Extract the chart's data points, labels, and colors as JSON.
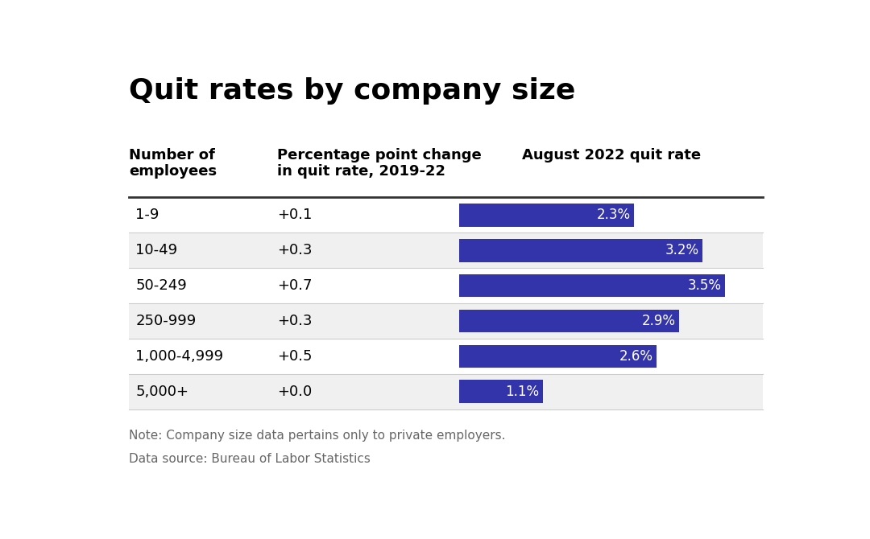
{
  "title": "Quit rates by company size",
  "col1_header": "Number of\nemployees",
  "col2_header": "Percentage point change\nin quit rate, 2019-22",
  "col3_header": "August 2022 quit rate",
  "categories": [
    "1-9",
    "10-49",
    "50-249",
    "250-999",
    "1,000-4,999",
    "5,000+"
  ],
  "pct_changes": [
    "+0.1",
    "+0.3",
    "+0.7",
    "+0.3",
    "+0.5",
    "+0.0"
  ],
  "quit_rates": [
    2.3,
    3.2,
    3.5,
    2.9,
    2.6,
    1.1
  ],
  "quit_rate_labels": [
    "2.3%",
    "3.2%",
    "3.5%",
    "2.9%",
    "2.6%",
    "1.1%"
  ],
  "bar_color": "#3333aa",
  "max_bar_value": 4.0,
  "note_line1": "Note: Company size data pertains only to private employers.",
  "note_line2": "Data source: Bureau of Labor Statistics",
  "background_color": "#ffffff",
  "row_alt_color": "#f0f0f0",
  "header_line_color": "#333333",
  "row_line_color": "#cccccc"
}
